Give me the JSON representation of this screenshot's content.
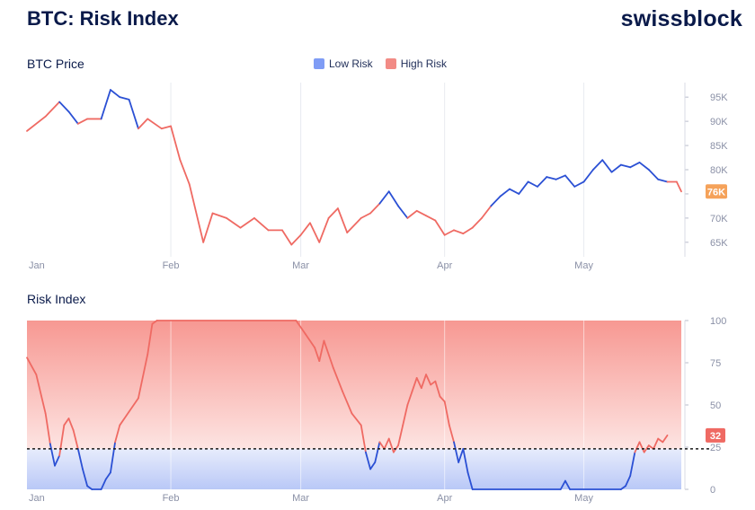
{
  "header": {
    "title": "BTC: Risk Index",
    "brand": "swissblock"
  },
  "legend": [
    {
      "label": "Low Risk",
      "color": "#7f9cf5"
    },
    {
      "label": "High Risk",
      "color": "#f28b85"
    }
  ],
  "colors": {
    "low_line": "#2b50d4",
    "high_line": "#ef6a63",
    "threshold": "#1a1a1a",
    "badge": "#f5a25a",
    "risk_badge": "#ef6a63"
  },
  "chart_data": [
    {
      "type": "line",
      "title": "BTC Price",
      "x_ticks": [
        "Jan",
        "Feb",
        "Mar",
        "Apr",
        "May"
      ],
      "y_ticks": [
        "95K",
        "90K",
        "85K",
        "80K",
        "75K",
        "70K",
        "65K"
      ],
      "ylim": [
        62000,
        98000
      ],
      "current_label": "76K",
      "series": [
        {
          "x": 0,
          "y": 88000,
          "risk": "high"
        },
        {
          "x": 4,
          "y": 91000,
          "risk": "high"
        },
        {
          "x": 7,
          "y": 94000,
          "risk": "high"
        },
        {
          "x": 9,
          "y": 92000,
          "risk": "low"
        },
        {
          "x": 11,
          "y": 89500,
          "risk": "low"
        },
        {
          "x": 13,
          "y": 90500,
          "risk": "high"
        },
        {
          "x": 16,
          "y": 90500,
          "risk": "high"
        },
        {
          "x": 18,
          "y": 96500,
          "risk": "low"
        },
        {
          "x": 20,
          "y": 95000,
          "risk": "low"
        },
        {
          "x": 22,
          "y": 94500,
          "risk": "low"
        },
        {
          "x": 24,
          "y": 88500,
          "risk": "low"
        },
        {
          "x": 26,
          "y": 90500,
          "risk": "high"
        },
        {
          "x": 29,
          "y": 88500,
          "risk": "high"
        },
        {
          "x": 31,
          "y": 89000,
          "risk": "high"
        },
        {
          "x": 33,
          "y": 82000,
          "risk": "high"
        },
        {
          "x": 35,
          "y": 77000,
          "risk": "high"
        },
        {
          "x": 38,
          "y": 65000,
          "risk": "high"
        },
        {
          "x": 40,
          "y": 71000,
          "risk": "high"
        },
        {
          "x": 43,
          "y": 70000,
          "risk": "high"
        },
        {
          "x": 46,
          "y": 68000,
          "risk": "high"
        },
        {
          "x": 49,
          "y": 70000,
          "risk": "high"
        },
        {
          "x": 52,
          "y": 67500,
          "risk": "high"
        },
        {
          "x": 55,
          "y": 67500,
          "risk": "high"
        },
        {
          "x": 57,
          "y": 64500,
          "risk": "high"
        },
        {
          "x": 59,
          "y": 66500,
          "risk": "high"
        },
        {
          "x": 61,
          "y": 69000,
          "risk": "high"
        },
        {
          "x": 63,
          "y": 65000,
          "risk": "high"
        },
        {
          "x": 65,
          "y": 70000,
          "risk": "high"
        },
        {
          "x": 67,
          "y": 72000,
          "risk": "high"
        },
        {
          "x": 69,
          "y": 67000,
          "risk": "high"
        },
        {
          "x": 72,
          "y": 70000,
          "risk": "high"
        },
        {
          "x": 74,
          "y": 71000,
          "risk": "high"
        },
        {
          "x": 76,
          "y": 73000,
          "risk": "high"
        },
        {
          "x": 78,
          "y": 75500,
          "risk": "low"
        },
        {
          "x": 80,
          "y": 72500,
          "risk": "low"
        },
        {
          "x": 82,
          "y": 70000,
          "risk": "low"
        },
        {
          "x": 84,
          "y": 71500,
          "risk": "high"
        },
        {
          "x": 86,
          "y": 70500,
          "risk": "high"
        },
        {
          "x": 88,
          "y": 69500,
          "risk": "high"
        },
        {
          "x": 90,
          "y": 66500,
          "risk": "high"
        },
        {
          "x": 92,
          "y": 67500,
          "risk": "high"
        },
        {
          "x": 94,
          "y": 66800,
          "risk": "high"
        },
        {
          "x": 96,
          "y": 68000,
          "risk": "high"
        },
        {
          "x": 98,
          "y": 70000,
          "risk": "high"
        },
        {
          "x": 100,
          "y": 72500,
          "risk": "high"
        },
        {
          "x": 102,
          "y": 74500,
          "risk": "low"
        },
        {
          "x": 104,
          "y": 76000,
          "risk": "low"
        },
        {
          "x": 106,
          "y": 75000,
          "risk": "low"
        },
        {
          "x": 108,
          "y": 77500,
          "risk": "low"
        },
        {
          "x": 110,
          "y": 76500,
          "risk": "low"
        },
        {
          "x": 112,
          "y": 78500,
          "risk": "low"
        },
        {
          "x": 114,
          "y": 78000,
          "risk": "low"
        },
        {
          "x": 116,
          "y": 78800,
          "risk": "low"
        },
        {
          "x": 118,
          "y": 76500,
          "risk": "low"
        },
        {
          "x": 120,
          "y": 77500,
          "risk": "low"
        },
        {
          "x": 122,
          "y": 80000,
          "risk": "low"
        },
        {
          "x": 124,
          "y": 82000,
          "risk": "low"
        },
        {
          "x": 126,
          "y": 79500,
          "risk": "low"
        },
        {
          "x": 128,
          "y": 81000,
          "risk": "low"
        },
        {
          "x": 130,
          "y": 80500,
          "risk": "low"
        },
        {
          "x": 132,
          "y": 81500,
          "risk": "low"
        },
        {
          "x": 134,
          "y": 80000,
          "risk": "low"
        },
        {
          "x": 136,
          "y": 78000,
          "risk": "low"
        },
        {
          "x": 138,
          "y": 77500,
          "risk": "low"
        },
        {
          "x": 140,
          "y": 77500,
          "risk": "high"
        },
        {
          "x": 141,
          "y": 75500,
          "risk": "high"
        }
      ]
    },
    {
      "type": "area",
      "title": "Risk Index",
      "x_ticks": [
        "Jan",
        "Feb",
        "Mar",
        "Apr",
        "May"
      ],
      "y_ticks": [
        "100",
        "75",
        "50",
        "25",
        "0"
      ],
      "ylim": [
        0,
        100
      ],
      "threshold": 24,
      "current_label": "32",
      "series": [
        {
          "x": 0,
          "y": 78
        },
        {
          "x": 2,
          "y": 68
        },
        {
          "x": 4,
          "y": 45
        },
        {
          "x": 5,
          "y": 27
        },
        {
          "x": 6,
          "y": 14
        },
        {
          "x": 7,
          "y": 20
        },
        {
          "x": 8,
          "y": 38
        },
        {
          "x": 9,
          "y": 42
        },
        {
          "x": 10,
          "y": 35
        },
        {
          "x": 11,
          "y": 24
        },
        {
          "x": 12,
          "y": 12
        },
        {
          "x": 13,
          "y": 2
        },
        {
          "x": 14,
          "y": 0
        },
        {
          "x": 16,
          "y": 0
        },
        {
          "x": 17,
          "y": 6
        },
        {
          "x": 18,
          "y": 10
        },
        {
          "x": 19,
          "y": 28
        },
        {
          "x": 20,
          "y": 38
        },
        {
          "x": 22,
          "y": 46
        },
        {
          "x": 24,
          "y": 54
        },
        {
          "x": 26,
          "y": 80
        },
        {
          "x": 27,
          "y": 98
        },
        {
          "x": 28,
          "y": 100
        },
        {
          "x": 58,
          "y": 100
        },
        {
          "x": 60,
          "y": 92
        },
        {
          "x": 62,
          "y": 84
        },
        {
          "x": 63,
          "y": 76
        },
        {
          "x": 64,
          "y": 88
        },
        {
          "x": 66,
          "y": 72
        },
        {
          "x": 68,
          "y": 58
        },
        {
          "x": 70,
          "y": 45
        },
        {
          "x": 72,
          "y": 38
        },
        {
          "x": 73,
          "y": 22
        },
        {
          "x": 74,
          "y": 12
        },
        {
          "x": 75,
          "y": 16
        },
        {
          "x": 76,
          "y": 28
        },
        {
          "x": 77,
          "y": 24
        },
        {
          "x": 78,
          "y": 30
        },
        {
          "x": 79,
          "y": 22
        },
        {
          "x": 80,
          "y": 26
        },
        {
          "x": 81,
          "y": 38
        },
        {
          "x": 82,
          "y": 50
        },
        {
          "x": 83,
          "y": 58
        },
        {
          "x": 84,
          "y": 66
        },
        {
          "x": 85,
          "y": 60
        },
        {
          "x": 86,
          "y": 68
        },
        {
          "x": 87,
          "y": 62
        },
        {
          "x": 88,
          "y": 64
        },
        {
          "x": 89,
          "y": 55
        },
        {
          "x": 90,
          "y": 52
        },
        {
          "x": 91,
          "y": 38
        },
        {
          "x": 92,
          "y": 28
        },
        {
          "x": 93,
          "y": 16
        },
        {
          "x": 94,
          "y": 24
        },
        {
          "x": 95,
          "y": 10
        },
        {
          "x": 96,
          "y": 0
        },
        {
          "x": 115,
          "y": 0
        },
        {
          "x": 116,
          "y": 5
        },
        {
          "x": 117,
          "y": 0
        },
        {
          "x": 128,
          "y": 0
        },
        {
          "x": 129,
          "y": 2
        },
        {
          "x": 130,
          "y": 8
        },
        {
          "x": 131,
          "y": 22
        },
        {
          "x": 132,
          "y": 28
        },
        {
          "x": 133,
          "y": 22
        },
        {
          "x": 134,
          "y": 26
        },
        {
          "x": 135,
          "y": 24
        },
        {
          "x": 136,
          "y": 30
        },
        {
          "x": 137,
          "y": 28
        },
        {
          "x": 138,
          "y": 32
        }
      ]
    }
  ]
}
